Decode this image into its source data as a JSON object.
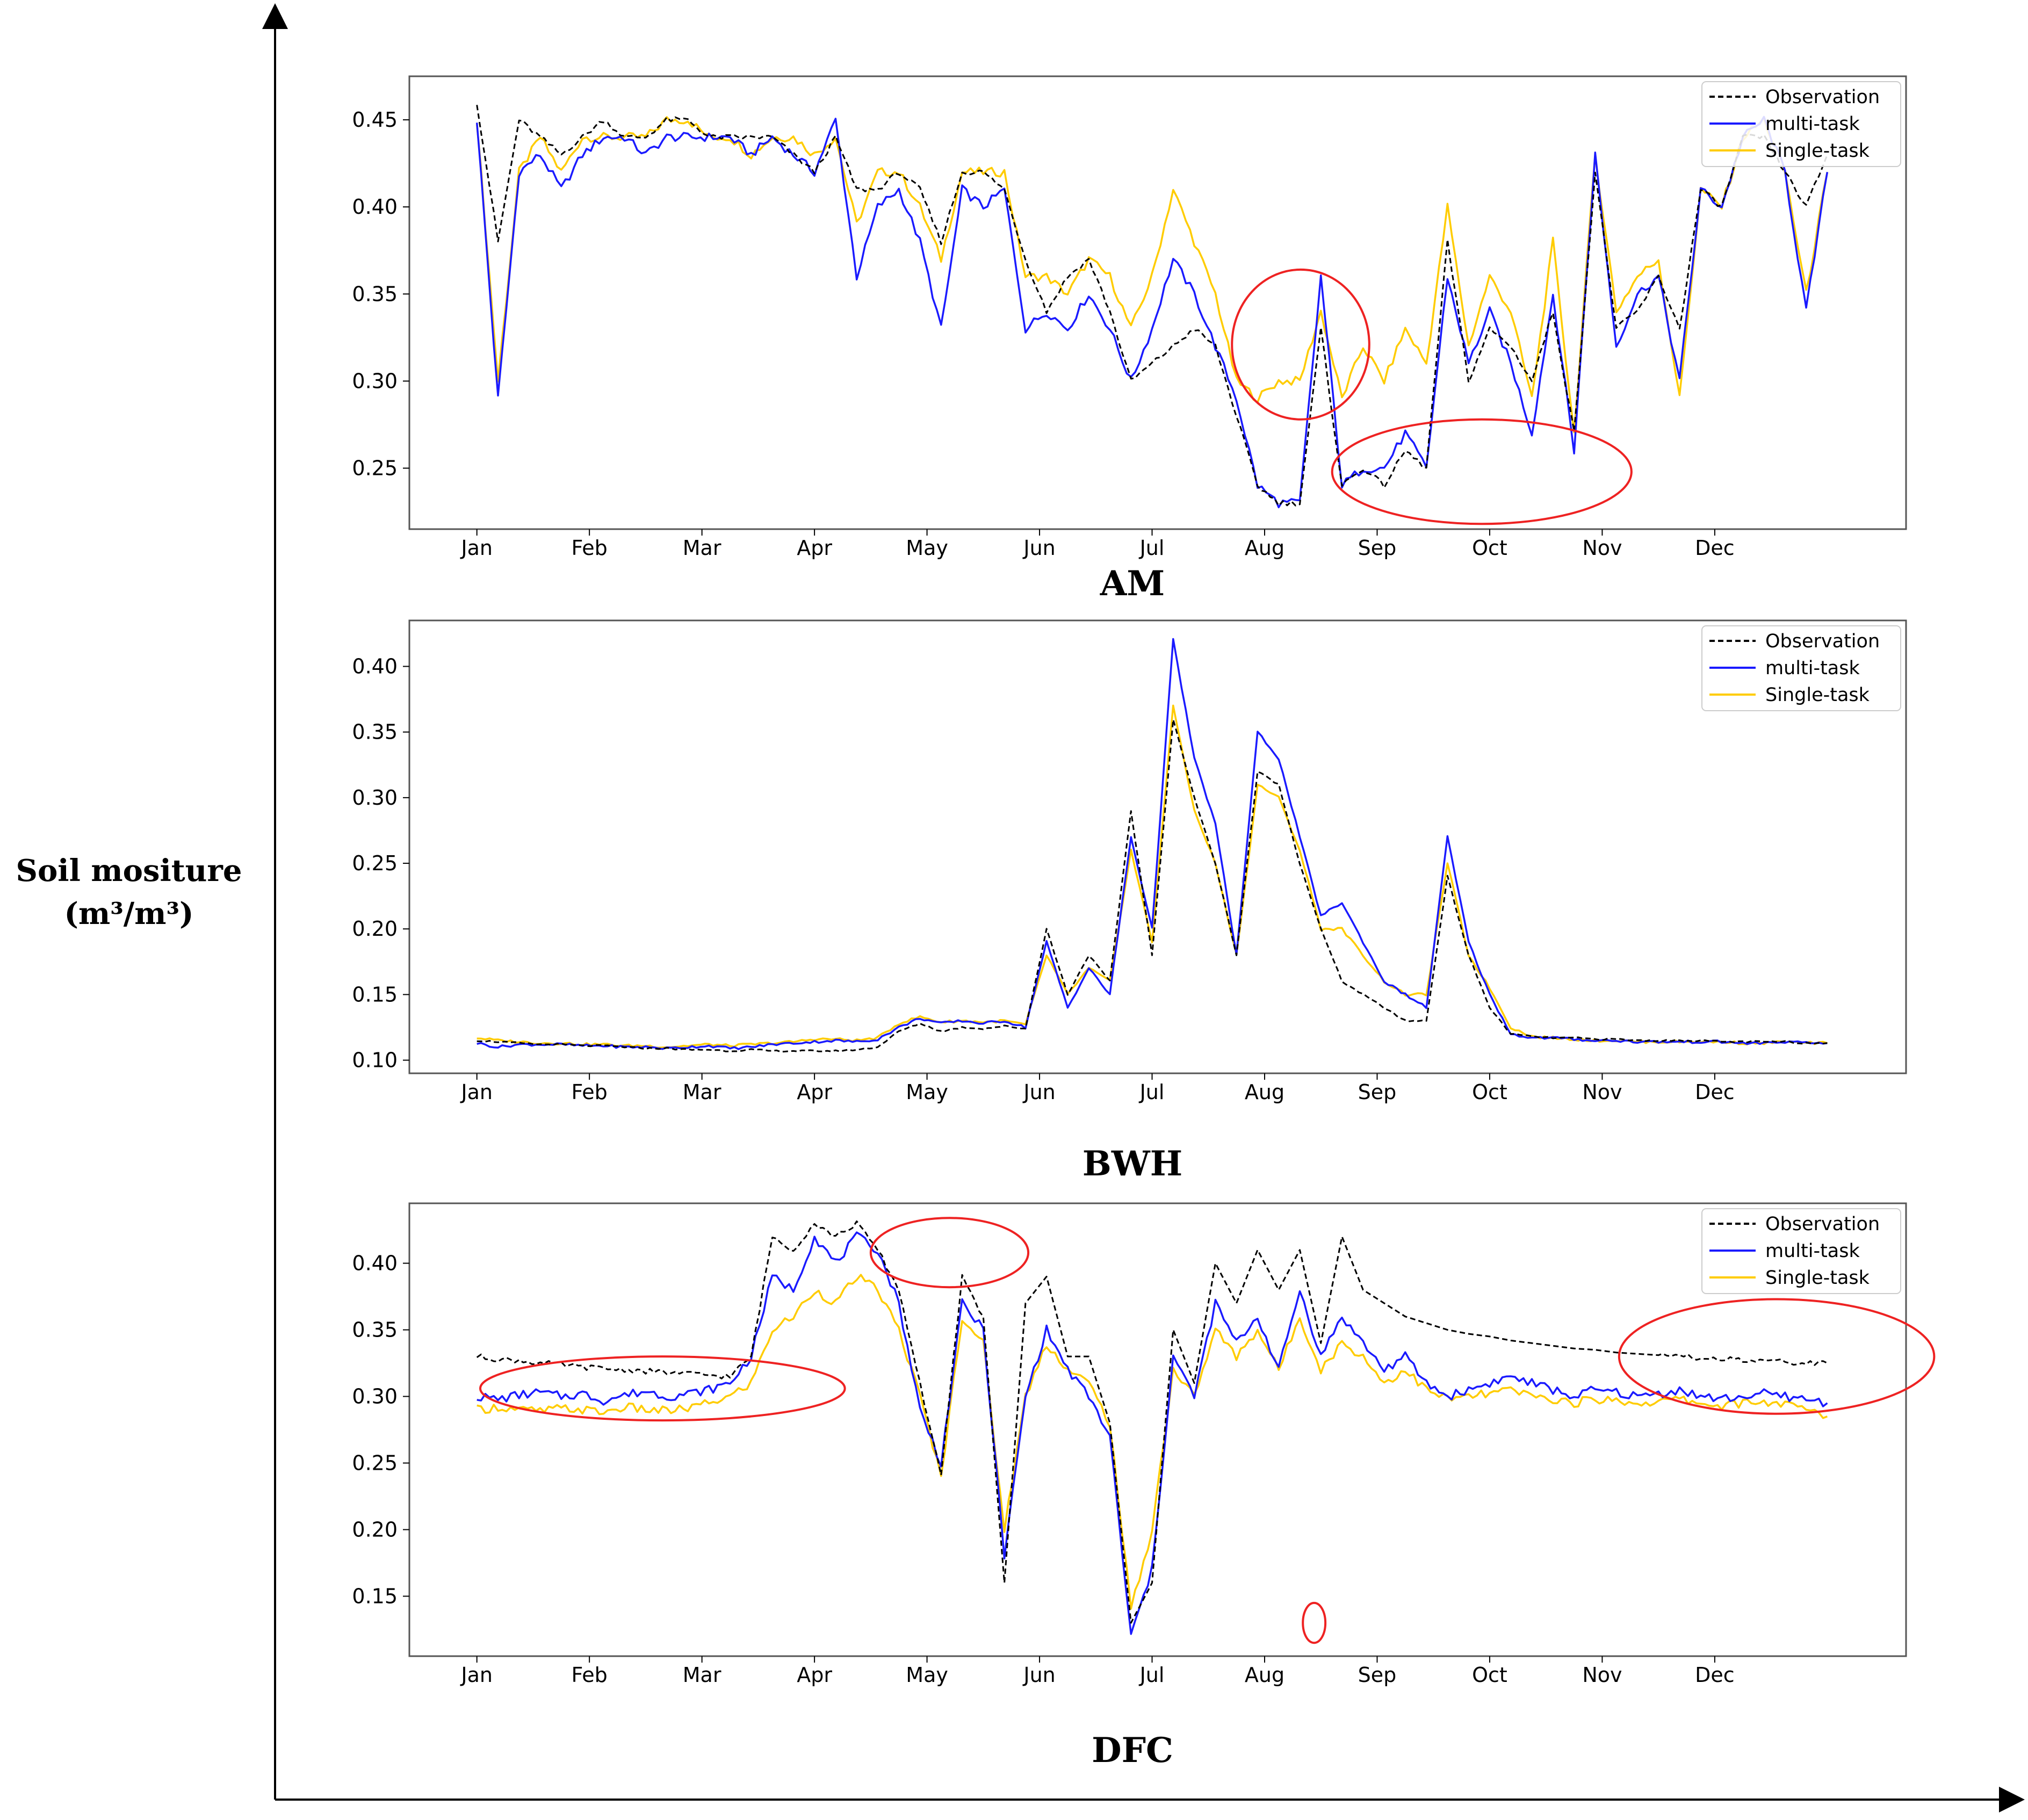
{
  "figure": {
    "ylabel_line1": "Soil mositure",
    "ylabel_line2": "(m³/m³)"
  },
  "colors": {
    "observation": "#000000",
    "multi": "#1a1aff",
    "single": "#ffcc00",
    "circle": "#ee2222"
  },
  "chart_data": [
    {
      "type": "line",
      "title": "AM",
      "xlabel": "",
      "ylabel": "Soil mositure (m³/m³)",
      "months": [
        "Jan",
        "Feb",
        "Mar",
        "Apr",
        "May",
        "Jun",
        "Jul",
        "Aug",
        "Sep",
        "Oct",
        "Nov",
        "Dec"
      ],
      "xlim": [
        -0.6,
        12.7
      ],
      "ylim": [
        0.215,
        0.475
      ],
      "yticks": [
        0.25,
        0.3,
        0.35,
        0.4,
        0.45
      ],
      "legend": [
        "Observation",
        "multi-task",
        "Single-task"
      ],
      "legend_position": "top-right",
      "series": [
        {
          "name": "Observation",
          "style": "dashed",
          "values": [
            0.46,
            0.38,
            0.45,
            0.44,
            0.43,
            0.44,
            0.45,
            0.44,
            0.44,
            0.45,
            0.45,
            0.44,
            0.44,
            0.44,
            0.44,
            0.43,
            0.42,
            0.44,
            0.41,
            0.41,
            0.42,
            0.41,
            0.38,
            0.42,
            0.42,
            0.41,
            0.37,
            0.34,
            0.36,
            0.37,
            0.34,
            0.3,
            0.31,
            0.32,
            0.33,
            0.32,
            0.28,
            0.24,
            0.23,
            0.23,
            0.33,
            0.24,
            0.25,
            0.24,
            0.26,
            0.25,
            0.38,
            0.3,
            0.33,
            0.32,
            0.3,
            0.34,
            0.27,
            0.42,
            0.33,
            0.34,
            0.36,
            0.33,
            0.41,
            0.4,
            0.44,
            0.44,
            0.42,
            0.4,
            0.43
          ]
        },
        {
          "name": "multi-task",
          "style": "solid",
          "values": [
            0.45,
            0.29,
            0.42,
            0.43,
            0.41,
            0.43,
            0.44,
            0.44,
            0.43,
            0.44,
            0.44,
            0.44,
            0.44,
            0.43,
            0.44,
            0.43,
            0.42,
            0.45,
            0.36,
            0.4,
            0.41,
            0.38,
            0.33,
            0.41,
            0.4,
            0.41,
            0.33,
            0.34,
            0.33,
            0.35,
            0.33,
            0.3,
            0.33,
            0.37,
            0.35,
            0.32,
            0.29,
            0.24,
            0.23,
            0.23,
            0.36,
            0.24,
            0.25,
            0.25,
            0.27,
            0.25,
            0.36,
            0.31,
            0.34,
            0.31,
            0.27,
            0.35,
            0.26,
            0.43,
            0.32,
            0.35,
            0.36,
            0.3,
            0.41,
            0.4,
            0.44,
            0.45,
            0.42,
            0.34,
            0.42
          ]
        },
        {
          "name": "Single-task",
          "style": "solid",
          "values": [
            0.45,
            0.3,
            0.42,
            0.44,
            0.42,
            0.44,
            0.44,
            0.44,
            0.44,
            0.45,
            0.45,
            0.44,
            0.44,
            0.43,
            0.44,
            0.44,
            0.43,
            0.44,
            0.39,
            0.42,
            0.42,
            0.4,
            0.37,
            0.42,
            0.42,
            0.42,
            0.36,
            0.36,
            0.35,
            0.37,
            0.36,
            0.33,
            0.36,
            0.41,
            0.38,
            0.35,
            0.3,
            0.29,
            0.3,
            0.3,
            0.34,
            0.29,
            0.32,
            0.3,
            0.33,
            0.31,
            0.4,
            0.32,
            0.36,
            0.34,
            0.29,
            0.38,
            0.27,
            0.43,
            0.34,
            0.36,
            0.37,
            0.29,
            0.41,
            0.4,
            0.44,
            0.45,
            0.42,
            0.35,
            0.42
          ]
        }
      ]
    },
    {
      "type": "line",
      "title": "BWH",
      "xlabel": "",
      "ylabel": "Soil mositure (m³/m³)",
      "months": [
        "Jan",
        "Feb",
        "Mar",
        "Apr",
        "May",
        "Jun",
        "Jul",
        "Aug",
        "Sep",
        "Oct",
        "Nov",
        "Dec"
      ],
      "xlim": [
        -0.6,
        12.7
      ],
      "ylim": [
        0.09,
        0.435
      ],
      "yticks": [
        0.1,
        0.15,
        0.2,
        0.25,
        0.3,
        0.35,
        0.4
      ],
      "legend": [
        "Observation",
        "multi-task",
        "Single-task"
      ],
      "legend_position": "top-right",
      "series": [
        {
          "name": "Observation",
          "style": "dashed",
          "values": [
            0.115,
            0.114,
            0.113,
            0.112,
            0.112,
            0.111,
            0.111,
            0.11,
            0.109,
            0.109,
            0.108,
            0.108,
            0.107,
            0.108,
            0.107,
            0.107,
            0.107,
            0.107,
            0.108,
            0.11,
            0.122,
            0.128,
            0.122,
            0.125,
            0.124,
            0.126,
            0.124,
            0.2,
            0.15,
            0.18,
            0.16,
            0.29,
            0.18,
            0.36,
            0.3,
            0.25,
            0.18,
            0.32,
            0.31,
            0.25,
            0.2,
            0.16,
            0.15,
            0.14,
            0.13,
            0.13,
            0.24,
            0.18,
            0.14,
            0.12,
            0.118,
            0.117,
            0.117,
            0.116,
            0.116,
            0.115,
            0.115,
            0.115,
            0.115,
            0.114,
            0.114,
            0.114,
            0.114,
            0.113,
            0.113
          ]
        },
        {
          "name": "multi-task",
          "style": "solid",
          "values": [
            0.113,
            0.11,
            0.112,
            0.112,
            0.112,
            0.111,
            0.111,
            0.11,
            0.11,
            0.109,
            0.11,
            0.111,
            0.109,
            0.11,
            0.112,
            0.113,
            0.114,
            0.115,
            0.114,
            0.116,
            0.125,
            0.132,
            0.128,
            0.13,
            0.128,
            0.13,
            0.125,
            0.19,
            0.14,
            0.17,
            0.15,
            0.27,
            0.2,
            0.42,
            0.33,
            0.28,
            0.18,
            0.35,
            0.33,
            0.27,
            0.21,
            0.22,
            0.19,
            0.16,
            0.15,
            0.14,
            0.27,
            0.19,
            0.15,
            0.12,
            0.117,
            0.117,
            0.116,
            0.115,
            0.115,
            0.114,
            0.114,
            0.114,
            0.114,
            0.114,
            0.113,
            0.113,
            0.114,
            0.113,
            0.113
          ]
        },
        {
          "name": "Single-task",
          "style": "solid",
          "values": [
            0.117,
            0.115,
            0.114,
            0.113,
            0.113,
            0.112,
            0.112,
            0.111,
            0.111,
            0.11,
            0.111,
            0.112,
            0.111,
            0.112,
            0.113,
            0.114,
            0.116,
            0.116,
            0.115,
            0.117,
            0.128,
            0.133,
            0.129,
            0.13,
            0.129,
            0.13,
            0.127,
            0.18,
            0.15,
            0.17,
            0.16,
            0.26,
            0.19,
            0.37,
            0.29,
            0.25,
            0.18,
            0.31,
            0.3,
            0.26,
            0.2,
            0.2,
            0.18,
            0.16,
            0.15,
            0.15,
            0.25,
            0.18,
            0.155,
            0.125,
            0.118,
            0.117,
            0.116,
            0.115,
            0.115,
            0.114,
            0.114,
            0.114,
            0.114,
            0.114,
            0.113,
            0.113,
            0.114,
            0.113,
            0.113
          ]
        }
      ]
    },
    {
      "type": "line",
      "title": "DFC",
      "xlabel": "",
      "ylabel": "Soil mositure (m³/m³)",
      "months": [
        "Jan",
        "Feb",
        "Mar",
        "Apr",
        "May",
        "Jun",
        "Jul",
        "Aug",
        "Sep",
        "Oct",
        "Nov",
        "Dec"
      ],
      "xlim": [
        -0.6,
        12.7
      ],
      "ylim": [
        0.105,
        0.445
      ],
      "yticks": [
        0.15,
        0.2,
        0.25,
        0.3,
        0.35,
        0.4
      ],
      "legend": [
        "Observation",
        "multi-task",
        "Single-task"
      ],
      "legend_position": "top-right",
      "series": [
        {
          "name": "Observation",
          "style": "dashed",
          "values": [
            0.33,
            0.328,
            0.327,
            0.325,
            0.324,
            0.322,
            0.321,
            0.32,
            0.319,
            0.318,
            0.317,
            0.316,
            0.315,
            0.33,
            0.42,
            0.41,
            0.43,
            0.42,
            0.43,
            0.41,
            0.38,
            0.31,
            0.24,
            0.39,
            0.36,
            0.16,
            0.37,
            0.39,
            0.33,
            0.33,
            0.28,
            0.13,
            0.16,
            0.35,
            0.31,
            0.4,
            0.37,
            0.41,
            0.38,
            0.41,
            0.34,
            0.42,
            0.38,
            0.37,
            0.36,
            0.355,
            0.35,
            0.347,
            0.345,
            0.342,
            0.34,
            0.338,
            0.336,
            0.335,
            0.333,
            0.332,
            0.331,
            0.33,
            0.329,
            0.328,
            0.327,
            0.326,
            0.326,
            0.325,
            0.325
          ]
        },
        {
          "name": "multi-task",
          "style": "solid",
          "values": [
            0.3,
            0.298,
            0.301,
            0.303,
            0.3,
            0.302,
            0.297,
            0.301,
            0.304,
            0.3,
            0.302,
            0.305,
            0.31,
            0.33,
            0.39,
            0.38,
            0.42,
            0.4,
            0.42,
            0.41,
            0.37,
            0.29,
            0.25,
            0.37,
            0.35,
            0.18,
            0.3,
            0.35,
            0.32,
            0.3,
            0.27,
            0.12,
            0.17,
            0.33,
            0.3,
            0.37,
            0.34,
            0.36,
            0.32,
            0.38,
            0.33,
            0.36,
            0.34,
            0.32,
            0.33,
            0.31,
            0.3,
            0.305,
            0.31,
            0.315,
            0.31,
            0.305,
            0.3,
            0.305,
            0.303,
            0.3,
            0.302,
            0.305,
            0.3,
            0.298,
            0.3,
            0.302,
            0.3,
            0.298,
            0.295
          ]
        },
        {
          "name": "Single-task",
          "style": "solid",
          "values": [
            0.29,
            0.292,
            0.29,
            0.289,
            0.291,
            0.29,
            0.288,
            0.292,
            0.29,
            0.289,
            0.291,
            0.295,
            0.3,
            0.31,
            0.35,
            0.36,
            0.38,
            0.37,
            0.39,
            0.38,
            0.35,
            0.3,
            0.24,
            0.36,
            0.34,
            0.2,
            0.3,
            0.34,
            0.32,
            0.31,
            0.28,
            0.14,
            0.2,
            0.32,
            0.3,
            0.35,
            0.33,
            0.35,
            0.32,
            0.36,
            0.32,
            0.34,
            0.33,
            0.31,
            0.32,
            0.305,
            0.298,
            0.3,
            0.302,
            0.305,
            0.3,
            0.298,
            0.295,
            0.298,
            0.297,
            0.295,
            0.296,
            0.298,
            0.295,
            0.293,
            0.295,
            0.296,
            0.294,
            0.29,
            0.285
          ]
        }
      ]
    }
  ]
}
